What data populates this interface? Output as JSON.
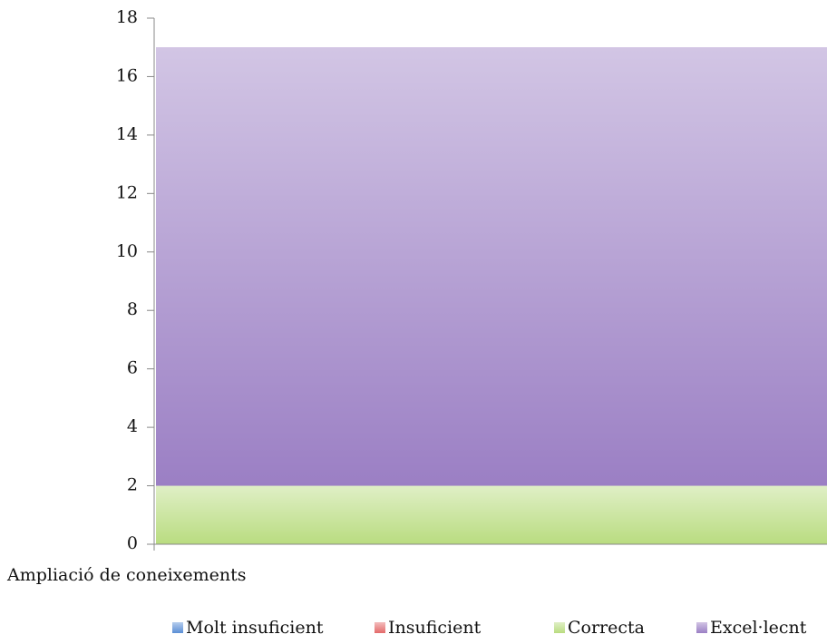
{
  "chart_data": {
    "type": "stacked_bar",
    "categories": [
      "Ampliació de coneixements"
    ],
    "series": [
      {
        "name": "Molt insuficient",
        "color": "#5b8fd6",
        "values": [
          0
        ]
      },
      {
        "name": "Insuficient",
        "color": "#e46a6a",
        "values": [
          0
        ]
      },
      {
        "name": "Correcta",
        "color": "#b9dc80",
        "values": [
          2
        ]
      },
      {
        "name": "Excel·lecnt",
        "color": "#9b7fc4",
        "values": [
          15
        ]
      }
    ],
    "ylim": [
      0,
      18
    ],
    "yticks": [
      0,
      2,
      4,
      6,
      8,
      10,
      12,
      14,
      16,
      18
    ],
    "legend": "bottom"
  }
}
